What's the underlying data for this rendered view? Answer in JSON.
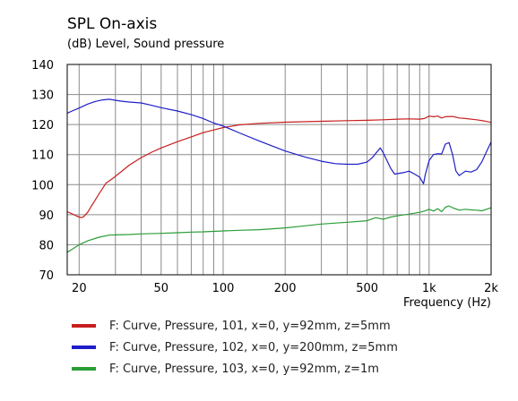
{
  "chart_data": {
    "type": "line",
    "title": "SPL On-axis",
    "ylabel": "(dB)  Level, Sound pressure",
    "xlabel": "Frequency  (Hz)",
    "x_scale": "log",
    "xlim": [
      17.5,
      2000
    ],
    "ylim": [
      70,
      140
    ],
    "grid": true,
    "legend_position": "bottom",
    "x_ticks": [
      {
        "value": 20,
        "label": "20"
      },
      {
        "value": 50,
        "label": "50"
      },
      {
        "value": 100,
        "label": "100"
      },
      {
        "value": 200,
        "label": "200"
      },
      {
        "value": 500,
        "label": "500"
      },
      {
        "value": 1000,
        "label": "1k"
      },
      {
        "value": 2000,
        "label": "2k"
      }
    ],
    "y_ticks": [
      70,
      80,
      90,
      100,
      110,
      120,
      130,
      140
    ],
    "series": [
      {
        "name": "F: Curve, Pressure, 101, x=0, y=92mm, z=5mm",
        "color": "#c81e1e",
        "points": [
          [
            17.5,
            91
          ],
          [
            18.5,
            90.3
          ],
          [
            19.5,
            89.5
          ],
          [
            20.5,
            89
          ],
          [
            21,
            89.3
          ],
          [
            22,
            90.8
          ],
          [
            23,
            93
          ],
          [
            25,
            97
          ],
          [
            27,
            100.5
          ],
          [
            29,
            102
          ],
          [
            32,
            104.3
          ],
          [
            35,
            106.5
          ],
          [
            40,
            109
          ],
          [
            45,
            110.8
          ],
          [
            50,
            112.2
          ],
          [
            60,
            114.3
          ],
          [
            70,
            115.9
          ],
          [
            80,
            117.3
          ],
          [
            90,
            118.2
          ],
          [
            100,
            119
          ],
          [
            120,
            119.9
          ],
          [
            150,
            120.4
          ],
          [
            200,
            120.8
          ],
          [
            300,
            121.1
          ],
          [
            400,
            121.3
          ],
          [
            500,
            121.4
          ],
          [
            600,
            121.6
          ],
          [
            700,
            121.8
          ],
          [
            800,
            121.9
          ],
          [
            900,
            121.8
          ],
          [
            950,
            122
          ],
          [
            1000,
            122.8
          ],
          [
            1050,
            122.6
          ],
          [
            1100,
            122.8
          ],
          [
            1150,
            122.2
          ],
          [
            1200,
            122.6
          ],
          [
            1300,
            122.7
          ],
          [
            1400,
            122.2
          ],
          [
            1500,
            122
          ],
          [
            1700,
            121.6
          ],
          [
            1850,
            121.2
          ],
          [
            2000,
            120.7
          ]
        ]
      },
      {
        "name": "F: Curve, Pressure, 102, x=0, y=200mm, z=5mm",
        "color": "#1e1ec8",
        "points": [
          [
            17.5,
            123.8
          ],
          [
            18.5,
            124.5
          ],
          [
            20,
            125.5
          ],
          [
            22,
            126.8
          ],
          [
            24,
            127.7
          ],
          [
            26,
            128.2
          ],
          [
            28,
            128.4
          ],
          [
            30,
            128.1
          ],
          [
            32,
            127.8
          ],
          [
            35,
            127.5
          ],
          [
            40,
            127.2
          ],
          [
            45,
            126.4
          ],
          [
            50,
            125.6
          ],
          [
            60,
            124.5
          ],
          [
            70,
            123.3
          ],
          [
            80,
            122
          ],
          [
            90,
            120.5
          ],
          [
            100,
            119.5
          ],
          [
            120,
            117.2
          ],
          [
            150,
            114.5
          ],
          [
            200,
            111.2
          ],
          [
            250,
            109.2
          ],
          [
            300,
            107.8
          ],
          [
            350,
            107
          ],
          [
            400,
            106.8
          ],
          [
            450,
            106.8
          ],
          [
            500,
            107.5
          ],
          [
            530,
            109
          ],
          [
            560,
            111
          ],
          [
            580,
            112.2
          ],
          [
            600,
            110.5
          ],
          [
            650,
            105.5
          ],
          [
            680,
            103.5
          ],
          [
            750,
            104
          ],
          [
            800,
            104.5
          ],
          [
            850,
            103.5
          ],
          [
            900,
            102.5
          ],
          [
            940,
            100.3
          ],
          [
            960,
            103.5
          ],
          [
            1000,
            108
          ],
          [
            1050,
            110
          ],
          [
            1100,
            110.3
          ],
          [
            1150,
            110.2
          ],
          [
            1200,
            113.5
          ],
          [
            1250,
            114
          ],
          [
            1300,
            110
          ],
          [
            1350,
            104.5
          ],
          [
            1400,
            103
          ],
          [
            1500,
            104.5
          ],
          [
            1600,
            104.2
          ],
          [
            1700,
            105
          ],
          [
            1800,
            107.5
          ],
          [
            1900,
            111
          ],
          [
            2000,
            114.2
          ]
        ]
      },
      {
        "name": "F: Curve, Pressure, 103, x=0, y=92mm, z=1m",
        "color": "#2a9d36",
        "points": [
          [
            17.5,
            77.5
          ],
          [
            18.5,
            78.5
          ],
          [
            20,
            80
          ],
          [
            22,
            81.3
          ],
          [
            25,
            82.5
          ],
          [
            28,
            83.2
          ],
          [
            30,
            83.3
          ],
          [
            35,
            83.4
          ],
          [
            40,
            83.6
          ],
          [
            50,
            83.8
          ],
          [
            60,
            84
          ],
          [
            70,
            84.2
          ],
          [
            80,
            84.3
          ],
          [
            100,
            84.6
          ],
          [
            120,
            84.8
          ],
          [
            150,
            85
          ],
          [
            200,
            85.6
          ],
          [
            250,
            86.3
          ],
          [
            300,
            86.9
          ],
          [
            400,
            87.5
          ],
          [
            500,
            88
          ],
          [
            550,
            89
          ],
          [
            600,
            88.5
          ],
          [
            650,
            89.2
          ],
          [
            700,
            89.6
          ],
          [
            800,
            90.2
          ],
          [
            900,
            90.8
          ],
          [
            950,
            91.2
          ],
          [
            1000,
            91.8
          ],
          [
            1050,
            91.2
          ],
          [
            1100,
            92
          ],
          [
            1150,
            91
          ],
          [
            1200,
            92.5
          ],
          [
            1250,
            92.9
          ],
          [
            1300,
            92.3
          ],
          [
            1400,
            91.5
          ],
          [
            1500,
            91.8
          ],
          [
            1600,
            91.6
          ],
          [
            1700,
            91.5
          ],
          [
            1800,
            91.3
          ],
          [
            1900,
            91.8
          ],
          [
            2000,
            92.3
          ]
        ]
      }
    ]
  }
}
